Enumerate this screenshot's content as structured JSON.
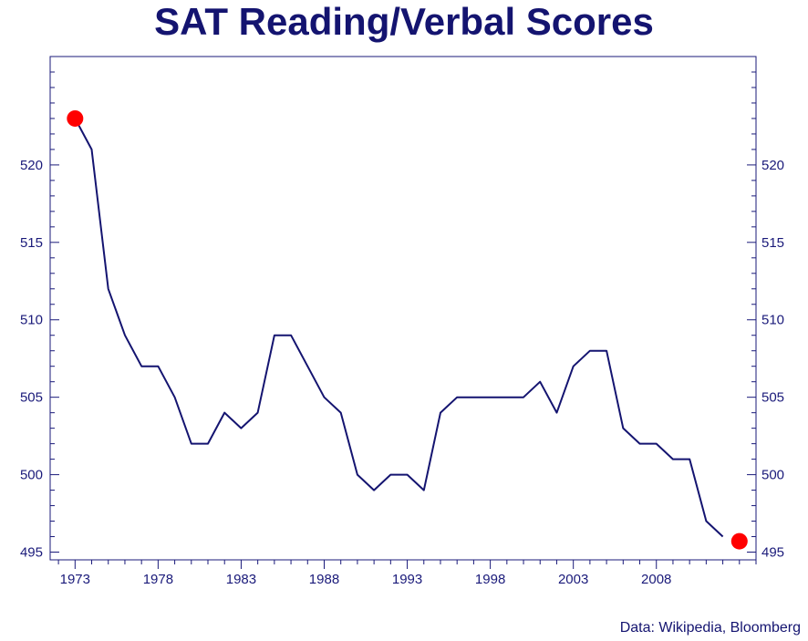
{
  "source_note": "Data: Wikipedia, Bloomberg",
  "colors": {
    "line": "#141470",
    "endpoint": "#ff0000",
    "axis": "#1a1a7a"
  },
  "chart_data": {
    "type": "line",
    "title": "SAT Reading/Verbal Scores",
    "xlabel": "",
    "ylabel": "",
    "xlim": [
      1971.5,
      2014
    ],
    "ylim": [
      494.5,
      527
    ],
    "grid": false,
    "legend": "none",
    "x_ticks": [
      1973,
      1978,
      1983,
      1988,
      1993,
      1998,
      2003,
      2008
    ],
    "y_ticks": [
      495,
      500,
      505,
      510,
      515,
      520
    ],
    "series": [
      {
        "x": [
          1973,
          1974,
          1975,
          1976,
          1977,
          1978,
          1979,
          1980,
          1981,
          1982,
          1983,
          1984,
          1985,
          1986,
          1987,
          1988,
          1989,
          1990,
          1991,
          1992,
          1993,
          1994,
          1995,
          1996,
          1997,
          1998,
          1999,
          2000,
          2001,
          2002,
          2003,
          2004,
          2005,
          2006,
          2007,
          2008,
          2009,
          2010,
          2011,
          2012
        ],
        "y": [
          523,
          521,
          512,
          509,
          507,
          507,
          505,
          502,
          502,
          504,
          503,
          504,
          509,
          509,
          507,
          505,
          504,
          500,
          499,
          500,
          500,
          499,
          504,
          505,
          505,
          505,
          505,
          505,
          506,
          504,
          507,
          508,
          508,
          503,
          502,
          502,
          501,
          501,
          497,
          496
        ]
      }
    ],
    "highlight_points": [
      {
        "x": 1973,
        "y": 523
      },
      {
        "x": 2013,
        "y": 495.7
      }
    ]
  }
}
